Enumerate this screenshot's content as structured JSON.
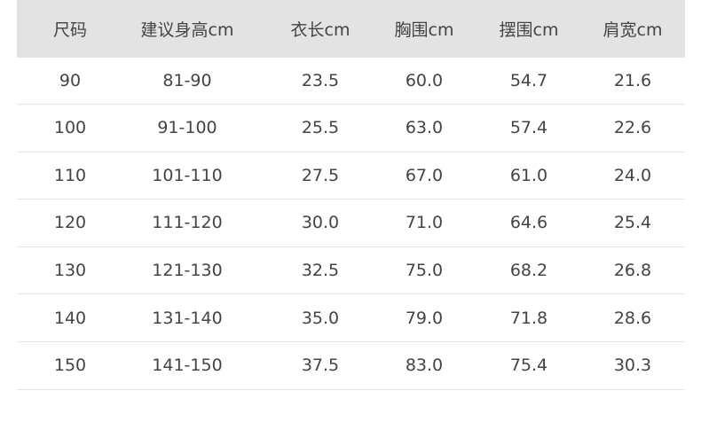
{
  "table": {
    "headers": [
      "尺码",
      "建议身高cm",
      "衣长cm",
      "胸围cm",
      "摆围cm",
      "肩宽cm"
    ],
    "rows": [
      [
        "90",
        "81-90",
        "23.5",
        "60.0",
        "54.7",
        "21.6"
      ],
      [
        "100",
        "91-100",
        "25.5",
        "63.0",
        "57.4",
        "22.6"
      ],
      [
        "110",
        "101-110",
        "27.5",
        "67.0",
        "61.0",
        "24.0"
      ],
      [
        "120",
        "111-120",
        "30.0",
        "71.0",
        "64.6",
        "25.4"
      ],
      [
        "130",
        "121-130",
        "32.5",
        "75.0",
        "68.2",
        "26.8"
      ],
      [
        "140",
        "131-140",
        "35.0",
        "79.0",
        "71.8",
        "28.6"
      ],
      [
        "150",
        "141-150",
        "37.5",
        "83.0",
        "75.4",
        "30.3"
      ]
    ]
  }
}
